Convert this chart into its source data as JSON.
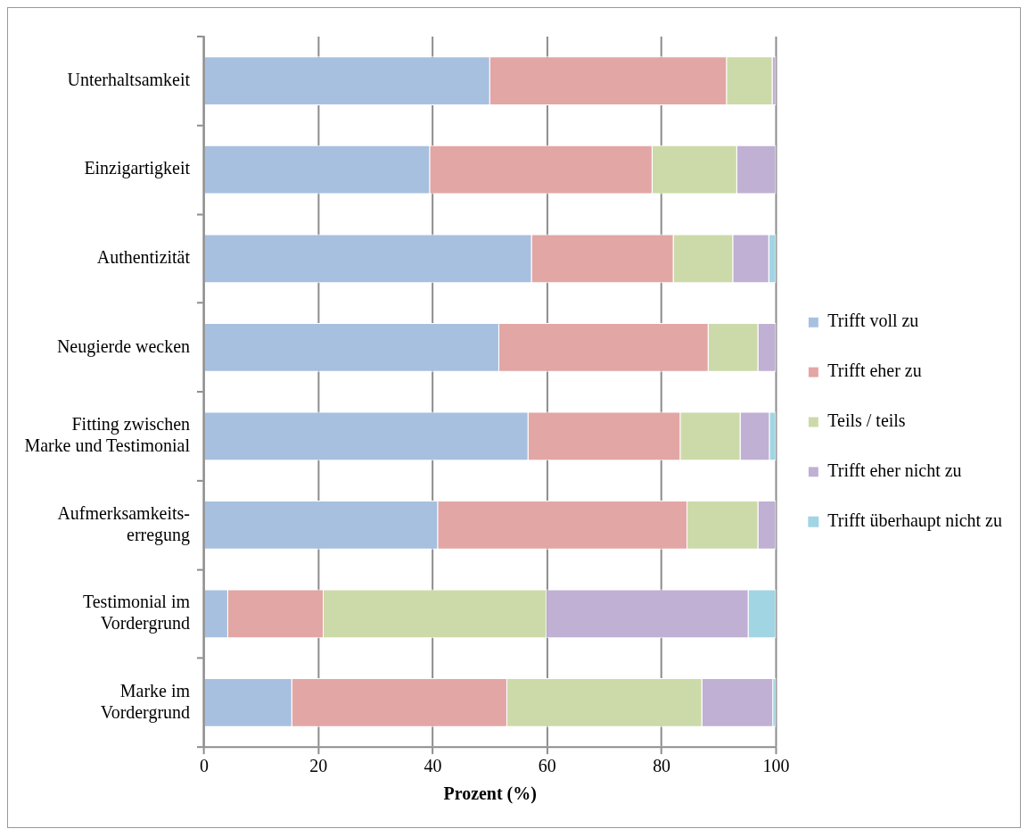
{
  "chart_data": {
    "type": "bar",
    "orientation": "horizontal",
    "stacked": true,
    "xlabel": "Prozent (%)",
    "categories": [
      "Unterhaltsamkeit",
      "Einzigartigkeit",
      "Authentizität",
      "Neugierde wecken",
      "Fitting zwischen\nMarke und Testimonial",
      "Aufmerksamkeits-\nerregung",
      "Testimonial im\nVordergrund",
      "Marke im\nVordergrund"
    ],
    "series": [
      {
        "name": "Trifft voll zu",
        "color": "#a7c0df",
        "values": [
          50,
          39.5,
          57.3,
          51.6,
          56.7,
          40.9,
          4.2,
          15.4
        ]
      },
      {
        "name": "Trifft eher zu",
        "color": "#e2a6a5",
        "values": [
          41.4,
          38.9,
          24.8,
          36.6,
          26.6,
          43.6,
          16.7,
          37.6
        ]
      },
      {
        "name": "Teils / teils",
        "color": "#ccdaa9",
        "values": [
          8,
          14.8,
          10.4,
          8.7,
          10.5,
          12.4,
          39,
          34.1
        ]
      },
      {
        "name": "Trifft eher nicht zu",
        "color": "#c0b0d3",
        "values": [
          0.6,
          6.8,
          6.3,
          3.1,
          5.1,
          3.1,
          35.3,
          12.4
        ]
      },
      {
        "name": "Trifft überhaupt nicht zu",
        "color": "#a2d5e3",
        "values": [
          0,
          0,
          1.2,
          0,
          1.1,
          0,
          4.8,
          0.5
        ]
      }
    ],
    "xlim": [
      0,
      100
    ],
    "xticks": [
      0,
      20,
      40,
      60,
      80,
      100
    ],
    "grid": "x",
    "legend": "right"
  }
}
